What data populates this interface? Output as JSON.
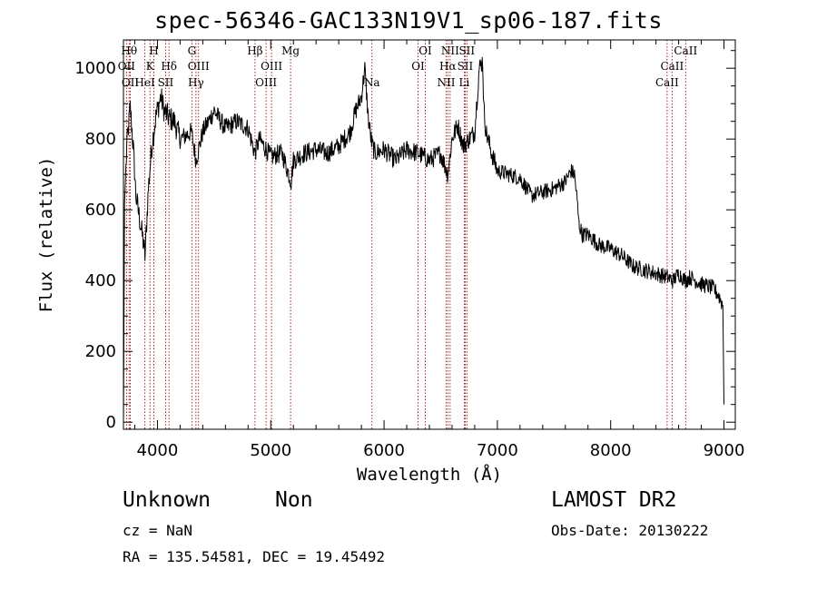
{
  "chart_data": {
    "type": "line",
    "title": "spec-56346-GAC133N19V1_sp06-187.fits",
    "xlabel": "Wavelength (Å)",
    "ylabel": "Flux (relative)",
    "xlim": [
      3700,
      9100
    ],
    "ylim": [
      -20,
      1080
    ],
    "x_ticks": [
      4000,
      5000,
      6000,
      7000,
      8000,
      9000
    ],
    "x_tick_labels": [
      "4000",
      "5000",
      "6000",
      "7000",
      "8000",
      "9000"
    ],
    "y_ticks": [
      0,
      200,
      400,
      600,
      800,
      1000
    ],
    "y_tick_labels": [
      "0",
      "200",
      "400",
      "600",
      "800",
      "1000"
    ],
    "series": [
      {
        "name": "flux",
        "x": [
          3700,
          3710,
          3730,
          3760,
          3790,
          3810,
          3830,
          3850,
          3870,
          3890,
          3920,
          3950,
          3990,
          4030,
          4060,
          4100,
          4150,
          4200,
          4300,
          4340,
          4400,
          4500,
          4600,
          4700,
          4800,
          4860,
          4900,
          5000,
          5100,
          5180,
          5200,
          5300,
          5400,
          5500,
          5600,
          5700,
          5750,
          5800,
          5830,
          5860,
          5890,
          5920,
          6000,
          6100,
          6200,
          6300,
          6400,
          6500,
          6563,
          6600,
          6650,
          6700,
          6750,
          6800,
          6840,
          6870,
          6880,
          6900,
          6950,
          7000,
          7100,
          7200,
          7300,
          7400,
          7500,
          7600,
          7650,
          7680,
          7700,
          7720,
          7750,
          7800,
          7900,
          8000,
          8100,
          8200,
          8300,
          8400,
          8500,
          8550,
          8600,
          8660,
          8700,
          8800,
          8900,
          8950,
          8990,
          9000
        ],
        "y": [
          0,
          620,
          780,
          890,
          760,
          640,
          600,
          560,
          520,
          470,
          660,
          780,
          870,
          920,
          880,
          860,
          850,
          800,
          820,
          740,
          820,
          880,
          830,
          850,
          830,
          760,
          800,
          750,
          760,
          680,
          740,
          760,
          770,
          760,
          780,
          820,
          880,
          920,
          1000,
          860,
          790,
          760,
          770,
          740,
          770,
          760,
          740,
          760,
          700,
          800,
          840,
          780,
          800,
          820,
          1000,
          1020,
          890,
          820,
          760,
          710,
          700,
          690,
          640,
          650,
          660,
          680,
          710,
          700,
          640,
          560,
          530,
          530,
          500,
          490,
          470,
          440,
          430,
          420,
          410,
          400,
          420,
          400,
          410,
          390,
          380,
          360,
          330,
          50
        ]
      }
    ],
    "line_markers": [
      {
        "wavelength": 3727,
        "label": "OII",
        "row": 1
      },
      {
        "wavelength": 3750,
        "label": "Hθ",
        "row": 0
      },
      {
        "wavelength": 3760,
        "label": "OII",
        "row": 2
      },
      {
        "wavelength": 3889,
        "label": "HeI",
        "row": 2
      },
      {
        "wavelength": 3934,
        "label": "K",
        "row": 1
      },
      {
        "wavelength": 3968,
        "label": "H",
        "row": 0
      },
      {
        "wavelength": 4072,
        "label": "SII",
        "row": 2
      },
      {
        "wavelength": 4102,
        "label": "Hδ",
        "row": 1
      },
      {
        "wavelength": 4304,
        "label": "G",
        "row": 0
      },
      {
        "wavelength": 4340,
        "label": "Hγ",
        "row": 2
      },
      {
        "wavelength": 4363,
        "label": "OIII",
        "row": 1
      },
      {
        "wavelength": 4861,
        "label": "Hβ",
        "row": 0
      },
      {
        "wavelength": 4959,
        "label": "OIII",
        "row": 2
      },
      {
        "wavelength": 5007,
        "label": "OIII",
        "row": 1
      },
      {
        "wavelength": 5175,
        "label": "Mg",
        "row": 0
      },
      {
        "wavelength": 5893,
        "label": "Na",
        "row": 2
      },
      {
        "wavelength": 6300,
        "label": "OI",
        "row": 1
      },
      {
        "wavelength": 6364,
        "label": "OI",
        "row": 0
      },
      {
        "wavelength": 6548,
        "label": "NII",
        "row": 2
      },
      {
        "wavelength": 6563,
        "label": "Hα",
        "row": 1
      },
      {
        "wavelength": 6583,
        "label": "NII",
        "row": 0
      },
      {
        "wavelength": 6708,
        "label": "Li",
        "row": 2
      },
      {
        "wavelength": 6716,
        "label": "SII",
        "row": 1
      },
      {
        "wavelength": 6731,
        "label": "SII",
        "row": 0
      },
      {
        "wavelength": 8498,
        "label": "CaII",
        "row": 2
      },
      {
        "wavelength": 8542,
        "label": "CaII",
        "row": 1
      },
      {
        "wavelength": 8662,
        "label": "CaII",
        "row": 0
      }
    ],
    "colors": {
      "spectrum": "#000000",
      "line_marker": "#a01010",
      "axes": "#000000"
    }
  },
  "info": {
    "class": "Unknown",
    "subclass": "Non",
    "survey": "LAMOST DR2",
    "cz": "cz = NaN",
    "obs_date": "Obs-Date: 20130222",
    "radec": "RA = 135.54581, DEC =  19.45492"
  }
}
